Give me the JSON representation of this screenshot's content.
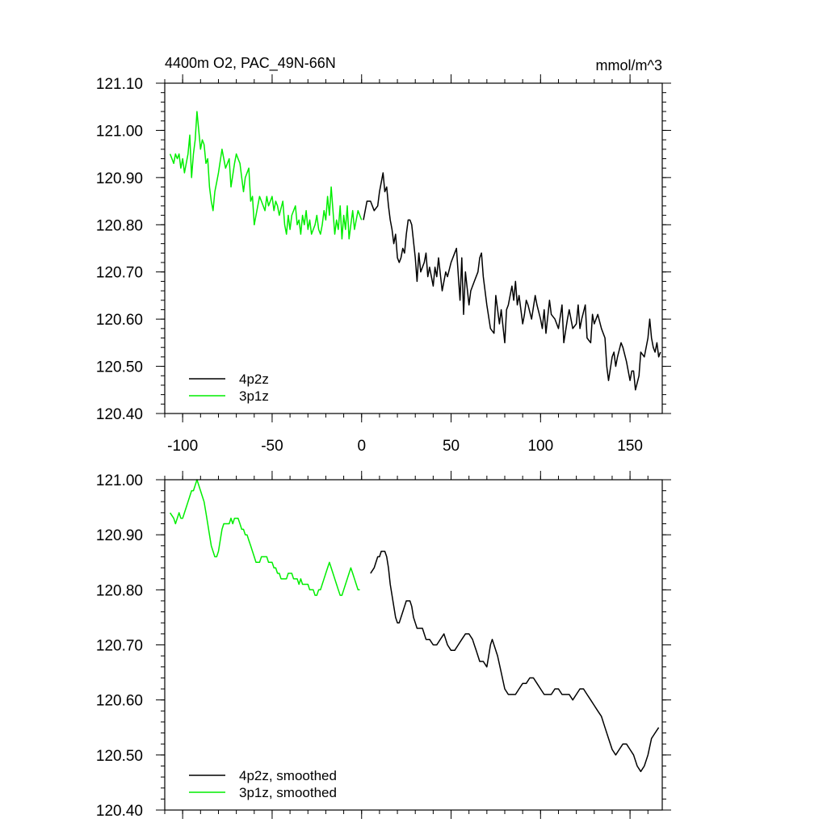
{
  "chart_data": [
    {
      "type": "line",
      "title": "4400m O2, PAC_49N-66N",
      "units": "mmol/m^3",
      "xlabel": "",
      "ylabel": "",
      "xlim": [
        -110,
        168
      ],
      "ylim": [
        120.4,
        121.1
      ],
      "xticks": [
        -100,
        -50,
        0,
        50,
        100,
        150
      ],
      "xtick_labels": [
        "-100",
        "-50",
        "0",
        "50",
        "100",
        "150"
      ],
      "yticks": [
        120.4,
        120.5,
        120.6,
        120.7,
        120.8,
        120.9,
        121.0,
        121.1
      ],
      "ytick_labels": [
        "120.40",
        "120.50",
        "120.60",
        "120.70",
        "120.80",
        "120.90",
        "121.00",
        "121.10"
      ],
      "grid": false,
      "legend_position": "bottom-left",
      "series": [
        {
          "name": "4p2z",
          "color": "#000000",
          "x": [
            1,
            3,
            5,
            7,
            9,
            10,
            11,
            12,
            13,
            14,
            15,
            16,
            17,
            18,
            19,
            20,
            21,
            22,
            23,
            24,
            25,
            26,
            27,
            28,
            30,
            31,
            32,
            33,
            35,
            36,
            37,
            38,
            40,
            41,
            42,
            43,
            45,
            47,
            48,
            50,
            52,
            53,
            55,
            56,
            57,
            58,
            60,
            61,
            62,
            63,
            65,
            66,
            67,
            68,
            70,
            72,
            74,
            75,
            77,
            78,
            80,
            81,
            82,
            84,
            85,
            86,
            87,
            88,
            90,
            91,
            92,
            93,
            95,
            97,
            98,
            100,
            101,
            102,
            103,
            105,
            106,
            108,
            110,
            112,
            113,
            115,
            116,
            118,
            120,
            121,
            122,
            123,
            125,
            126,
            128,
            129,
            130,
            132,
            134,
            136,
            137,
            138,
            140,
            141,
            142,
            143,
            145,
            146,
            148,
            150,
            151,
            152,
            153,
            155,
            156,
            158,
            160,
            161,
            162,
            163,
            164,
            165,
            166,
            167
          ],
          "values": [
            120.81,
            120.85,
            120.85,
            120.83,
            120.84,
            120.87,
            120.89,
            120.91,
            120.87,
            120.88,
            120.84,
            120.81,
            120.79,
            120.76,
            120.78,
            120.73,
            120.72,
            120.73,
            120.75,
            120.74,
            120.78,
            120.81,
            120.81,
            120.8,
            120.73,
            120.68,
            120.74,
            120.7,
            120.72,
            120.74,
            120.69,
            120.71,
            120.67,
            120.71,
            120.69,
            120.73,
            120.66,
            120.7,
            120.69,
            120.72,
            120.74,
            120.75,
            120.64,
            120.73,
            120.61,
            120.7,
            120.63,
            120.66,
            120.67,
            120.68,
            120.7,
            120.73,
            120.74,
            120.69,
            120.63,
            120.58,
            120.57,
            120.65,
            120.59,
            120.62,
            120.55,
            120.62,
            120.63,
            120.67,
            120.64,
            120.68,
            120.63,
            120.65,
            120.59,
            120.61,
            120.64,
            120.63,
            120.6,
            120.65,
            120.63,
            120.6,
            120.58,
            120.62,
            120.57,
            120.64,
            120.61,
            120.6,
            120.58,
            120.63,
            120.55,
            120.6,
            120.62,
            120.58,
            120.59,
            120.63,
            120.58,
            120.6,
            120.63,
            120.56,
            120.55,
            120.61,
            120.59,
            120.61,
            120.58,
            120.56,
            120.5,
            120.47,
            120.52,
            120.53,
            120.5,
            120.52,
            120.55,
            120.54,
            120.51,
            120.47,
            120.49,
            120.49,
            120.45,
            120.48,
            120.53,
            120.52,
            120.56,
            120.6,
            120.56,
            120.54,
            120.53,
            120.55,
            120.52,
            120.53
          ]
        },
        {
          "name": "3p1z",
          "color": "#00ee00",
          "x": [
            -107,
            -106,
            -105,
            -104,
            -103,
            -102,
            -101,
            -100,
            -99,
            -98,
            -97,
            -96,
            -95,
            -94,
            -93,
            -92,
            -91,
            -90,
            -89,
            -88,
            -87,
            -86,
            -85,
            -84,
            -83,
            -82,
            -81,
            -80,
            -78,
            -76,
            -74,
            -73,
            -71,
            -70,
            -69,
            -68,
            -66,
            -65,
            -63,
            -62,
            -61,
            -60,
            -58,
            -57,
            -56,
            -54,
            -53,
            -52,
            -51,
            -50,
            -49,
            -48,
            -47,
            -46,
            -44,
            -43,
            -42,
            -41,
            -40,
            -39,
            -37,
            -36,
            -35,
            -34,
            -33,
            -32,
            -31,
            -30,
            -29,
            -28,
            -26,
            -25,
            -24,
            -23,
            -22,
            -21,
            -20,
            -19,
            -18,
            -17,
            -16,
            -15,
            -14,
            -13,
            -12,
            -11,
            -10,
            -9,
            -8,
            -7,
            -6,
            -5,
            -4,
            -3,
            -2,
            -1,
            0
          ],
          "values": [
            120.95,
            120.94,
            120.93,
            120.95,
            120.94,
            120.95,
            120.92,
            120.94,
            120.91,
            120.93,
            120.95,
            120.99,
            120.9,
            120.95,
            120.98,
            121.04,
            121.0,
            120.96,
            120.98,
            120.97,
            120.93,
            120.94,
            120.88,
            120.85,
            120.83,
            120.87,
            120.89,
            120.91,
            120.96,
            120.92,
            120.94,
            120.88,
            120.93,
            120.95,
            120.94,
            120.93,
            120.87,
            120.9,
            120.92,
            120.85,
            120.86,
            120.8,
            120.84,
            120.86,
            120.85,
            120.83,
            120.86,
            120.84,
            120.85,
            120.86,
            120.83,
            120.85,
            120.84,
            120.82,
            120.85,
            120.8,
            120.78,
            120.82,
            120.79,
            120.82,
            120.84,
            120.8,
            120.81,
            120.78,
            120.82,
            120.8,
            120.83,
            120.79,
            120.81,
            120.78,
            120.8,
            120.82,
            120.79,
            120.78,
            120.8,
            120.83,
            120.81,
            120.86,
            120.82,
            120.88,
            120.83,
            120.78,
            120.81,
            120.79,
            120.84,
            120.77,
            120.82,
            120.79,
            120.84,
            120.77,
            120.8,
            120.83,
            120.79,
            120.81,
            120.83,
            120.82,
            120.81
          ]
        }
      ]
    },
    {
      "type": "line",
      "title": "",
      "xlabel": "",
      "ylabel": "",
      "xlim": [
        -110,
        168
      ],
      "ylim": [
        120.4,
        121.0
      ],
      "xticks": [
        -100,
        -50,
        0,
        50,
        100,
        150
      ],
      "yticks": [
        120.4,
        120.5,
        120.6,
        120.7,
        120.8,
        120.9,
        121.0
      ],
      "ytick_labels": [
        "120.40",
        "120.50",
        "120.60",
        "120.70",
        "120.80",
        "120.90",
        "121.00"
      ],
      "grid": false,
      "legend_position": "bottom-left",
      "series": [
        {
          "name": "4p2z, smoothed",
          "color": "#000000",
          "x": [
            5,
            7,
            9,
            10,
            11,
            12,
            13,
            14,
            15,
            16,
            17,
            18,
            19,
            20,
            21,
            22,
            23,
            24,
            25,
            26,
            27,
            28,
            29,
            30,
            31,
            32,
            33,
            34,
            35,
            36,
            37,
            38,
            40,
            42,
            44,
            46,
            47,
            48,
            50,
            52,
            54,
            56,
            58,
            60,
            62,
            63,
            64,
            65,
            66,
            68,
            70,
            71,
            72,
            73,
            74,
            76,
            78,
            80,
            82,
            84,
            86,
            88,
            90,
            92,
            94,
            96,
            98,
            100,
            102,
            104,
            106,
            108,
            110,
            112,
            114,
            116,
            118,
            120,
            122,
            124,
            126,
            128,
            130,
            132,
            134,
            136,
            138,
            140,
            142,
            144,
            146,
            148,
            150,
            152,
            154,
            156,
            158,
            160,
            162,
            164,
            166
          ],
          "values": [
            120.83,
            120.84,
            120.86,
            120.86,
            120.87,
            120.87,
            120.87,
            120.86,
            120.84,
            120.81,
            120.79,
            120.77,
            120.75,
            120.74,
            120.74,
            120.75,
            120.76,
            120.77,
            120.78,
            120.78,
            120.78,
            120.77,
            120.75,
            120.74,
            120.73,
            120.73,
            120.73,
            120.73,
            120.72,
            120.71,
            120.71,
            120.71,
            120.7,
            120.7,
            120.71,
            120.72,
            120.71,
            120.7,
            120.69,
            120.69,
            120.7,
            120.71,
            120.72,
            120.72,
            120.71,
            120.7,
            120.69,
            120.68,
            120.67,
            120.67,
            120.66,
            120.68,
            120.7,
            120.71,
            120.7,
            120.68,
            120.65,
            120.62,
            120.61,
            120.61,
            120.61,
            120.62,
            120.63,
            120.63,
            120.64,
            120.64,
            120.63,
            120.62,
            120.61,
            120.61,
            120.61,
            120.62,
            120.62,
            120.61,
            120.61,
            120.61,
            120.6,
            120.61,
            120.62,
            120.62,
            120.61,
            120.6,
            120.59,
            120.58,
            120.57,
            120.55,
            120.53,
            120.51,
            120.5,
            120.51,
            120.52,
            120.52,
            120.51,
            120.5,
            120.48,
            120.47,
            120.48,
            120.5,
            120.53,
            120.54,
            120.55
          ]
        },
        {
          "name": "3p1z, smoothed",
          "color": "#00ee00",
          "x": [
            -107,
            -105,
            -104,
            -103,
            -102,
            -101,
            -100,
            -99,
            -98,
            -97,
            -96,
            -95,
            -94,
            -93,
            -92,
            -91,
            -90,
            -89,
            -88,
            -87,
            -86,
            -85,
            -84,
            -83,
            -82,
            -81,
            -80,
            -79,
            -78,
            -77,
            -76,
            -75,
            -74,
            -73,
            -72,
            -71,
            -70,
            -69,
            -68,
            -67,
            -66,
            -65,
            -64,
            -63,
            -62,
            -61,
            -60,
            -59,
            -58,
            -57,
            -56,
            -55,
            -54,
            -53,
            -52,
            -51,
            -50,
            -49,
            -48,
            -47,
            -46,
            -45,
            -44,
            -43,
            -42,
            -41,
            -40,
            -39,
            -38,
            -37,
            -36,
            -35,
            -34,
            -33,
            -32,
            -31,
            -30,
            -29,
            -28,
            -27,
            -26,
            -25,
            -24,
            -23,
            -22,
            -21,
            -20,
            -19,
            -18,
            -17,
            -16,
            -15,
            -14,
            -13,
            -12,
            -11,
            -10,
            -9,
            -8,
            -7,
            -6,
            -5,
            -4,
            -3,
            -2,
            -1
          ],
          "values": [
            120.94,
            120.93,
            120.92,
            120.93,
            120.94,
            120.93,
            120.93,
            120.94,
            120.95,
            120.96,
            120.97,
            120.98,
            120.98,
            120.99,
            121.0,
            120.99,
            120.98,
            120.97,
            120.96,
            120.94,
            120.92,
            120.9,
            120.88,
            120.87,
            120.86,
            120.86,
            120.87,
            120.89,
            120.91,
            120.92,
            120.92,
            120.92,
            120.92,
            120.93,
            120.92,
            120.93,
            120.93,
            120.93,
            120.92,
            120.91,
            120.91,
            120.9,
            120.9,
            120.89,
            120.88,
            120.87,
            120.86,
            120.85,
            120.85,
            120.85,
            120.86,
            120.86,
            120.86,
            120.86,
            120.85,
            120.85,
            120.85,
            120.84,
            120.84,
            120.83,
            120.83,
            120.82,
            120.82,
            120.82,
            120.82,
            120.83,
            120.83,
            120.83,
            120.82,
            120.82,
            120.82,
            120.81,
            120.82,
            120.81,
            120.81,
            120.81,
            120.81,
            120.8,
            120.8,
            120.8,
            120.79,
            120.79,
            120.8,
            120.8,
            120.81,
            120.82,
            120.83,
            120.84,
            120.85,
            120.84,
            120.83,
            120.82,
            120.81,
            120.8,
            120.79,
            120.79,
            120.8,
            120.81,
            120.82,
            120.83,
            120.84,
            120.83,
            120.82,
            120.81,
            120.8,
            120.8
          ]
        }
      ]
    }
  ]
}
